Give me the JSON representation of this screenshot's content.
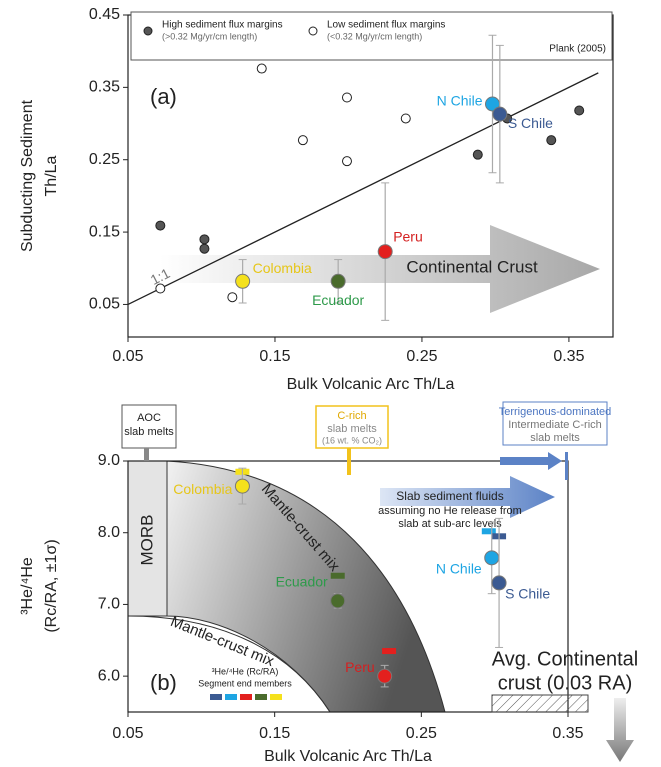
{
  "chart_data": [
    {
      "type": "scatter",
      "panel_label": "(a)",
      "xlabel": "Bulk Volcanic Arc Th/La",
      "ylabel": [
        "Subducting Sediment",
        "Th/La"
      ],
      "xlim": [
        0.05,
        0.38
      ],
      "xticks": [
        0.05,
        0.15,
        0.25,
        0.35
      ],
      "ylim": [
        0.005,
        0.45
      ],
      "yticks": [
        0.05,
        0.15,
        0.25,
        0.35,
        0.45
      ],
      "source": "Plank (2005)",
      "series": [
        {
          "name": "High sediment flux margins",
          "subtitle": "(>0.32 Mg/yr/cm length)",
          "color": "#555555",
          "x": [
            0.072,
            0.102,
            0.102,
            0.288,
            0.308,
            0.338,
            0.357
          ],
          "values": [
            0.159,
            0.14,
            0.127,
            0.257,
            0.307,
            0.277,
            0.318
          ]
        },
        {
          "name": "Low sediment flux margins",
          "subtitle": "(<0.32 Mg/yr/cm length)",
          "color": "#ffffff",
          "x": [
            0.072,
            0.121,
            0.141,
            0.169,
            0.199,
            0.199,
            0.239
          ],
          "values": [
            0.072,
            0.06,
            0.376,
            0.277,
            0.336,
            0.248,
            0.307
          ]
        }
      ],
      "arcs": [
        {
          "name": "Colombia",
          "color": "#f5e11c",
          "label_color": "#e6c619",
          "x": 0.128,
          "y": 0.082,
          "yerr": 0.03
        },
        {
          "name": "Ecuador",
          "color": "#4a6b2c",
          "label_color": "#2e9a4a",
          "x": 0.193,
          "y": 0.082,
          "yerr": 0.03
        },
        {
          "name": "Peru",
          "color": "#e3201e",
          "label_color": "#d42020",
          "x": 0.225,
          "y": 0.123,
          "yerr": 0.095
        },
        {
          "name": "N Chile",
          "color": "#1ea5e3",
          "label_color": "#1ea5e3",
          "x": 0.298,
          "y": 0.327,
          "yerr": 0.095
        },
        {
          "name": "S Chile",
          "color": "#3b5a92",
          "label_color": "#3b5a92",
          "x": 0.303,
          "y": 0.313,
          "yerr": 0.095
        }
      ],
      "one_to_one": {
        "label": "1:1",
        "x": [
          0.05,
          0.37
        ],
        "y": [
          0.05,
          0.37
        ]
      },
      "arrow_label": "Continental Crust"
    },
    {
      "type": "scatter",
      "panel_label": "(b)",
      "xlabel": "Bulk Volcanic Arc Th/La",
      "ylabel": [
        "³He/⁴He",
        "(Rc/RA, ±1σ)"
      ],
      "xlim": [
        0.05,
        0.35
      ],
      "xticks": [
        0.05,
        0.15,
        0.25,
        0.35
      ],
      "ylim": [
        5.5,
        9.0
      ],
      "yticks": [
        {
          "value": 6,
          "label": "6.0"
        },
        {
          "value": 7,
          "label": "7.0"
        },
        {
          "value": 8,
          "label": "8.0"
        },
        {
          "value": 9,
          "label": "9.0"
        }
      ],
      "arcs": [
        {
          "name": "Colombia",
          "color": "#f5e11c",
          "label_color": "#e6c619",
          "x": 0.128,
          "y": 8.65,
          "yerr": 0.25
        },
        {
          "name": "Ecuador",
          "color": "#4a6b2c",
          "label_color": "#2e9a4a",
          "x": 0.193,
          "y": 7.05,
          "yerr": 0.1
        },
        {
          "name": "Peru",
          "color": "#e3201e",
          "label_color": "#d42020",
          "x": 0.225,
          "y": 6.0,
          "yerr": 0.15
        },
        {
          "name": "N Chile",
          "color": "#1ea5e3",
          "label_color": "#1ea5e3",
          "x": 0.298,
          "y": 7.65,
          "yerr": 0.5
        },
        {
          "name": "S Chile",
          "color": "#3b5a92",
          "label_color": "#3b5a92",
          "x": 0.303,
          "y": 7.3,
          "yerr": 0.9
        }
      ],
      "end_members": {
        "title": "³He/⁴He (Rc/RA)",
        "subtitle": "Segment end members",
        "x": [
          0.128,
          0.193,
          0.228,
          0.296,
          0.303
        ],
        "values": [
          8.85,
          7.4,
          6.35,
          8.02,
          7.95
        ]
      },
      "notes": {
        "aoc": [
          "AOC",
          "slab melts"
        ],
        "c_rich": [
          "C-rich",
          "slab melts",
          "(16 wt. % CO₂)"
        ],
        "terrigenous": [
          "Terrigenous-dominated",
          "Intermediate C-rich",
          "slab melts"
        ],
        "fluids": [
          "Slab sediment fluids",
          "assuming no He release from",
          "slab at sub-arc levels"
        ],
        "morb": "MORB",
        "mix": "Mantle-crust mix",
        "crust": [
          "Avg. Continental",
          "crust (0.03 RA)"
        ]
      }
    }
  ]
}
